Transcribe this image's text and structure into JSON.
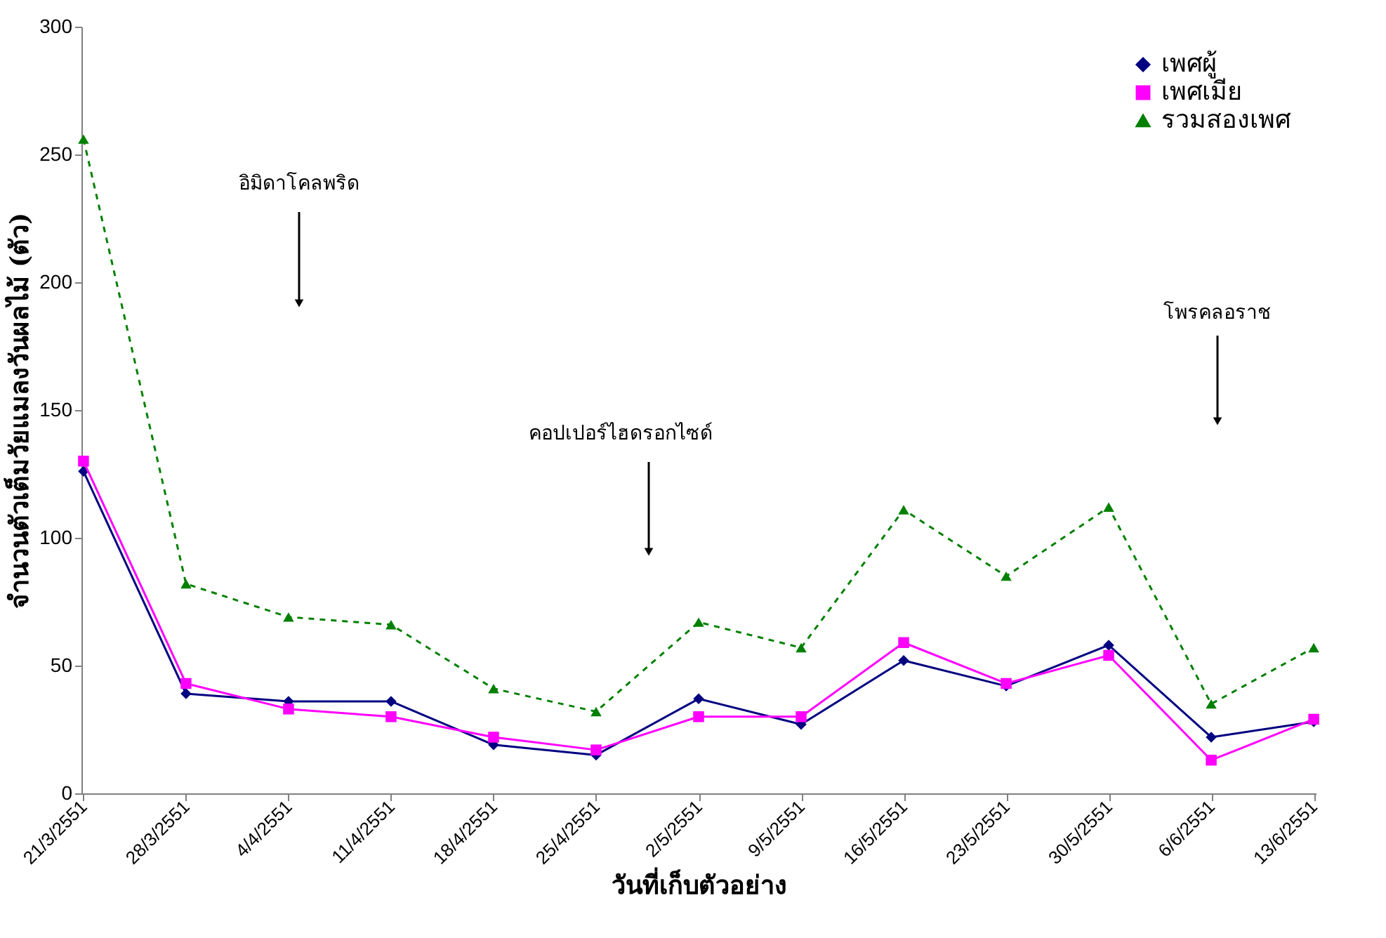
{
  "chart_data": {
    "type": "line",
    "xlabel": "วันที่เก็บตัวอย่าง",
    "ylabel": "จำนวนตัวเต็มวัยแมลงวันผลไม้ (ตัว)",
    "categories": [
      "21/3/2551",
      "28/3/2551",
      "4/4/2551",
      "11/4/2551",
      "18/4/2551",
      "25/4/2551",
      "2/5/2551",
      "9/5/2551",
      "16/5/2551",
      "23/5/2551",
      "30/5/2551",
      "6/6/2551",
      "13/6/2551"
    ],
    "series": [
      {
        "name": "เพศผู้",
        "color": "#000080",
        "marker": "diamond",
        "line_style": "solid",
        "values": [
          126,
          39,
          36,
          36,
          19,
          15,
          37,
          27,
          52,
          42,
          58,
          22,
          28
        ]
      },
      {
        "name": "เพศเมีย",
        "color": "#ff00ff",
        "marker": "square",
        "line_style": "solid",
        "values": [
          130,
          43,
          33,
          30,
          22,
          17,
          30,
          30,
          59,
          43,
          54,
          13,
          29
        ]
      },
      {
        "name": "รวมสองเพศ",
        "color": "#008000",
        "marker": "triangle",
        "line_style": "dashed",
        "values": [
          256,
          82,
          69,
          66,
          41,
          32,
          67,
          57,
          111,
          85,
          112,
          35,
          57
        ]
      }
    ],
    "annotations": [
      "อิมิดาโคลพริด",
      "คอปเปอร์ไฮดรอกไซด์",
      "โพรคลอราช"
    ],
    "ylim": [
      0,
      300
    ],
    "yticks": [
      0,
      50,
      100,
      150,
      200,
      250,
      300
    ],
    "grid": false,
    "legend": "top right"
  }
}
